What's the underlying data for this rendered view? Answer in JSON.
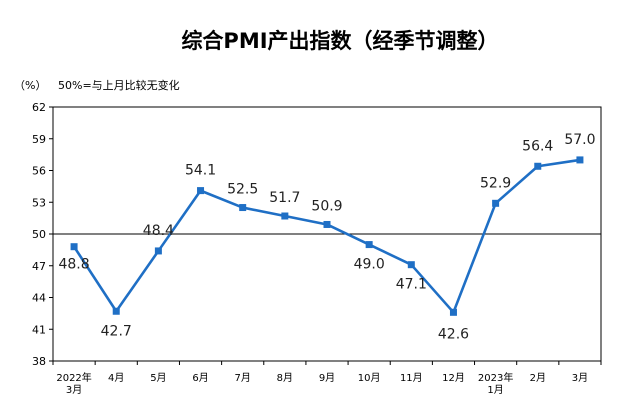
{
  "chart_data": {
    "type": "line",
    "title": "综合PMI产出指数（经季节调整）",
    "unit_label": "（%）",
    "note": "50%=与上月比较无变化",
    "categories": [
      [
        "2022年",
        "3月"
      ],
      [
        "4月"
      ],
      [
        "5月"
      ],
      [
        "6月"
      ],
      [
        "7月"
      ],
      [
        "8月"
      ],
      [
        "9月"
      ],
      [
        "10月"
      ],
      [
        "11月"
      ],
      [
        "12月"
      ],
      [
        "2023年",
        "1月"
      ],
      [
        "2月"
      ],
      [
        "3月"
      ]
    ],
    "series": [
      {
        "values": [
          48.8,
          42.7,
          48.4,
          54.1,
          52.5,
          51.7,
          50.9,
          49.0,
          47.1,
          42.6,
          52.9,
          56.4,
          57.0
        ]
      }
    ],
    "data_labels": [
      "48.8",
      "42.7",
      "48.4",
      "54.1",
      "52.5",
      "51.7",
      "50.9",
      "49.0",
      "47.1",
      "42.6",
      "52.9",
      "56.4",
      "57.0"
    ],
    "ylim": [
      38,
      62
    ],
    "yticks": [
      "62",
      "59",
      "56",
      "53",
      "50",
      "47",
      "44",
      "41",
      "38"
    ],
    "reference_line": 50,
    "grid": false,
    "colors": {
      "line": "#1f6fc5",
      "marker": "#1f6fc5",
      "axis": "#000000"
    }
  }
}
